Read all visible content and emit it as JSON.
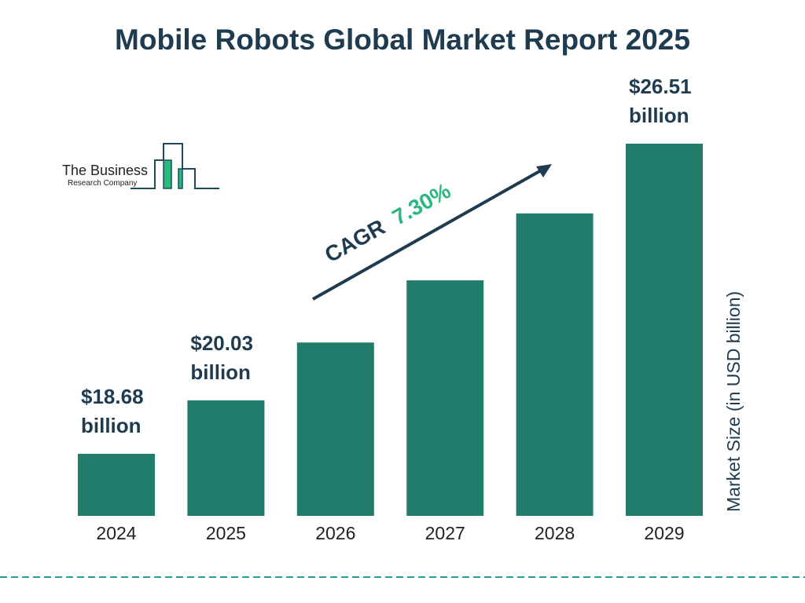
{
  "chart_data": {
    "type": "bar",
    "title": "Mobile Robots Global Market Report 2025",
    "categories": [
      "2024",
      "2025",
      "2026",
      "2027",
      "2028",
      "2029"
    ],
    "values": [
      18.68,
      20.03,
      21.49,
      23.06,
      24.75,
      26.51
    ],
    "data_labels": [
      {
        "index": 0,
        "line1": "$18.68",
        "line2": "billion"
      },
      {
        "index": 1,
        "line1": "$20.03",
        "line2": "billion"
      },
      {
        "index": 5,
        "line1": "$26.51",
        "line2": "billion"
      }
    ],
    "xlabel": "",
    "ylabel": "Market Size (in USD billion)",
    "annotation": {
      "prefix": "CAGR",
      "value": "7.30%"
    },
    "grid": false,
    "colors": {
      "bar": "#217c6c",
      "text": "#1f3b50",
      "accent": "#2ab87f",
      "dash": "#2a9d8f"
    }
  },
  "logo": {
    "line1": "The Business",
    "line2": "Research Company"
  }
}
